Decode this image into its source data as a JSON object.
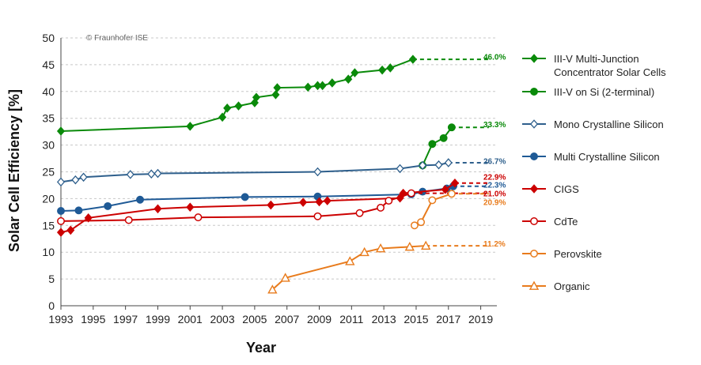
{
  "chart_data": {
    "type": "line",
    "title": "",
    "copyright": "© Fraunhofer ISE",
    "xlabel": "Year",
    "ylabel": "Solar Cell Efficiency [%]",
    "xlim": [
      1993,
      2020
    ],
    "ylim": [
      0,
      50
    ],
    "x_ticks": [
      "1993",
      "1995",
      "1997",
      "1999",
      "2001",
      "2003",
      "2005",
      "2007",
      "2009",
      "2011",
      "2013",
      "2015",
      "2017",
      "2019"
    ],
    "y_ticks": [
      "0",
      "5",
      "10",
      "15",
      "20",
      "25",
      "30",
      "35",
      "40",
      "45",
      "50"
    ],
    "grid": "horizontal dashed",
    "legend_position": "right",
    "series": [
      {
        "name": "III-V Multi-Junction Concentrator Solar Cells",
        "color": "#0a8a0a",
        "marker": "diamond-filled",
        "x": [
          1993,
          2001,
          2003,
          2003.3,
          2004,
          2005,
          2005.1,
          2006.3,
          2006.4,
          2008.3,
          2008.9,
          2009.2,
          2009.8,
          2010.8,
          2011.2,
          2012.9,
          2013.4,
          2014.8
        ],
        "y": [
          32.6,
          33.5,
          35.2,
          36.9,
          37.3,
          37.9,
          38.9,
          39.4,
          40.7,
          40.8,
          41.1,
          41.1,
          41.6,
          42.3,
          43.5,
          44.0,
          44.4,
          46.0
        ],
        "projection": {
          "x": [
            2014.8,
            2019.5
          ],
          "y": [
            46.0,
            46.0
          ]
        },
        "end_label": "46.0%"
      },
      {
        "name": "III-V on Si (2-terminal)",
        "color": "#0a8a0a",
        "marker": "circle-filled",
        "x": [
          2015.4,
          2016,
          2016.7,
          2017.2
        ],
        "y": [
          26.2,
          30.2,
          31.3,
          33.3
        ],
        "projection": {
          "x": [
            2017.2,
            2019.5
          ],
          "y": [
            33.3,
            33.3
          ]
        },
        "end_label": "33.3%"
      },
      {
        "name": "Mono Crystalline Silicon",
        "color": "#2e5f8c",
        "marker": "diamond-open",
        "x": [
          1993,
          1993.9,
          1994.4,
          1997.3,
          1998.6,
          1999,
          2008.9,
          2014,
          2015.4,
          2016.4,
          2017
        ],
        "y": [
          23.1,
          23.5,
          24.0,
          24.5,
          24.6,
          24.7,
          25.0,
          25.6,
          26.2,
          26.3,
          26.7
        ],
        "projection": {
          "x": [
            2017,
            2019.5
          ],
          "y": [
            26.7,
            26.7
          ]
        },
        "end_label": "26.7%"
      },
      {
        "name": "Multi Crystalline Silicon",
        "color": "#1f5a96",
        "marker": "circle-filled",
        "x": [
          1993,
          1994.1,
          1995.9,
          1997.9,
          2004.4,
          2008.9,
          2014.7,
          2015.4,
          2016.9,
          2017.3
        ],
        "y": [
          17.7,
          17.8,
          18.6,
          19.8,
          20.3,
          20.4,
          20.8,
          21.3,
          21.9,
          22.3
        ],
        "projection": {
          "x": [
            2017.3,
            2019.5
          ],
          "y": [
            22.3,
            22.3
          ]
        },
        "end_label": "22.3%"
      },
      {
        "name": "CIGS",
        "color": "#cc0000",
        "marker": "diamond-filled",
        "x": [
          1993,
          1993.6,
          1994.7,
          1999,
          2001,
          2006,
          2008,
          2009,
          2009.5,
          2014,
          2014.2,
          2016.8,
          2017.4
        ],
        "y": [
          13.7,
          14.1,
          16.4,
          18.1,
          18.4,
          18.8,
          19.3,
          19.4,
          19.6,
          20.1,
          21.0,
          21.7,
          22.9
        ],
        "projection": {
          "x": [
            2017.4,
            2019.5
          ],
          "y": [
            22.9,
            22.9
          ]
        },
        "end_label": "22.9%"
      },
      {
        "name": "CdTe",
        "color": "#cc0000",
        "marker": "circle-open",
        "x": [
          1993,
          1997.2,
          2001.5,
          2008.9,
          2011.5,
          2012.8,
          2013.3,
          2014.7
        ],
        "y": [
          15.8,
          16.0,
          16.5,
          16.7,
          17.3,
          18.3,
          19.6,
          21.0
        ],
        "projection": {
          "x": [
            2014.7,
            2019.5
          ],
          "y": [
            21.0,
            21.0
          ]
        },
        "end_label": "21.0%"
      },
      {
        "name": "Perovskite",
        "color": "#e87b1c",
        "marker": "circle-open",
        "x": [
          2014.9,
          2015.3,
          2016,
          2017.2
        ],
        "y": [
          15.0,
          15.6,
          19.7,
          20.9
        ],
        "projection": {
          "x": [
            2017.2,
            2019.5
          ],
          "y": [
            20.9,
            20.9
          ]
        },
        "end_label": "20.9%"
      },
      {
        "name": "Organic",
        "color": "#e87b1c",
        "marker": "triangle-open",
        "x": [
          2006.1,
          2006.9,
          2010.9,
          2011.8,
          2012.8,
          2014.6,
          2015.6
        ],
        "y": [
          3.0,
          5.2,
          8.3,
          10.0,
          10.7,
          11.0,
          11.2
        ],
        "projection": {
          "x": [
            2015.6,
            2019.5
          ],
          "y": [
            11.2,
            11.2
          ]
        },
        "end_label": "11.2%"
      }
    ]
  }
}
